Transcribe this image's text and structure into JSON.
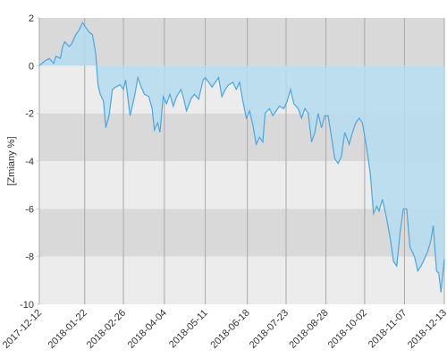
{
  "chart_data": {
    "type": "area",
    "y_label": "[Zmiany %]",
    "x": [
      "2017-12-12",
      "2017-12-17",
      "2017-12-21",
      "2017-12-25",
      "2017-12-27",
      "2017-12-31",
      "2018-01-02",
      "2018-01-04",
      "2018-01-08",
      "2018-01-10",
      "2018-01-14",
      "2018-01-17",
      "2018-01-20",
      "2018-01-23",
      "2018-01-26",
      "2018-01-29",
      "2018-02-01",
      "2018-02-03",
      "2018-02-05",
      "2018-02-08",
      "2018-02-10",
      "2018-02-13",
      "2018-02-16",
      "2018-02-19",
      "2018-02-23",
      "2018-02-26",
      "2018-02-28",
      "2018-03-04",
      "2018-03-08",
      "2018-03-11",
      "2018-03-14",
      "2018-03-17",
      "2018-03-21",
      "2018-03-24",
      "2018-03-26",
      "2018-03-29",
      "2018-03-31",
      "2018-04-03",
      "2018-04-06",
      "2018-04-09",
      "2018-04-12",
      "2018-04-15",
      "2018-04-19",
      "2018-04-21",
      "2018-04-24",
      "2018-04-28",
      "2018-05-01",
      "2018-05-05",
      "2018-05-09",
      "2018-05-11",
      "2018-05-14",
      "2018-05-17",
      "2018-05-20",
      "2018-05-23",
      "2018-05-26",
      "2018-05-29",
      "2018-06-01",
      "2018-06-05",
      "2018-06-08",
      "2018-06-11",
      "2018-06-14",
      "2018-06-17",
      "2018-06-20",
      "2018-06-23",
      "2018-06-26",
      "2018-06-29",
      "2018-07-02",
      "2018-07-04",
      "2018-07-08",
      "2018-07-11",
      "2018-07-14",
      "2018-07-17",
      "2018-07-21",
      "2018-07-24",
      "2018-07-27",
      "2018-07-30",
      "2018-08-03",
      "2018-08-06",
      "2018-08-09",
      "2018-08-12",
      "2018-08-15",
      "2018-08-18",
      "2018-08-21",
      "2018-08-24",
      "2018-08-27",
      "2018-08-30",
      "2018-09-02",
      "2018-09-05",
      "2018-09-08",
      "2018-09-11",
      "2018-09-14",
      "2018-09-18",
      "2018-09-21",
      "2018-09-24",
      "2018-09-27",
      "2018-09-30",
      "2018-10-04",
      "2018-10-07",
      "2018-10-10",
      "2018-10-13",
      "2018-10-15",
      "2018-10-18",
      "2018-10-21",
      "2018-10-25",
      "2018-10-28",
      "2018-10-31",
      "2018-11-03",
      "2018-11-06",
      "2018-11-09",
      "2018-11-12",
      "2018-11-16",
      "2018-11-19",
      "2018-11-22",
      "2018-11-24",
      "2018-11-28",
      "2018-12-01",
      "2018-12-03",
      "2018-12-06",
      "2018-12-08",
      "2018-12-10",
      "2018-12-13"
    ],
    "values": [
      0,
      0.2,
      0.3,
      0.1,
      0.4,
      0.3,
      0.8,
      1.0,
      0.8,
      0.9,
      1.3,
      1.5,
      1.8,
      1.6,
      1.4,
      1.3,
      0.5,
      -0.8,
      -1.2,
      -1.5,
      -2.6,
      -2.1,
      -1.0,
      -0.9,
      -0.8,
      -1.0,
      -0.6,
      -2.1,
      -1.3,
      -0.5,
      -0.9,
      -1.2,
      -1.3,
      -1.8,
      -2.7,
      -2.4,
      -2.8,
      -1.3,
      -1.6,
      -1.2,
      -1.7,
      -1.3,
      -1.0,
      -1.3,
      -1.9,
      -1.4,
      -1.2,
      -1.4,
      -0.6,
      -0.5,
      -0.7,
      -0.9,
      -0.7,
      -0.5,
      -1.3,
      -1.0,
      -0.8,
      -0.7,
      -1.0,
      -0.7,
      -1.5,
      -2.2,
      -1.9,
      -2.5,
      -3.3,
      -3.0,
      -3.2,
      -2.0,
      -1.8,
      -2.1,
      -1.9,
      -1.7,
      -1.8,
      -1.5,
      -1.0,
      -1.6,
      -1.8,
      -2.2,
      -1.8,
      -2.0,
      -3.2,
      -2.8,
      -2.0,
      -2.6,
      -2.1,
      -2.1,
      -3.0,
      -3.9,
      -4.1,
      -3.8,
      -2.8,
      -3.3,
      -2.8,
      -2.4,
      -2.2,
      -2.4,
      -3.5,
      -4.5,
      -6.2,
      -5.9,
      -6.1,
      -5.6,
      -6.2,
      -7.2,
      -8.2,
      -8.4,
      -7.0,
      -6.0,
      -6.0,
      -7.6,
      -8.0,
      -8.6,
      -8.4,
      -8.2,
      -7.8,
      -7.3,
      -6.7,
      -8.6,
      -8.7,
      -9.5,
      -8.1
    ],
    "color": "#4da6e0",
    "fill_color": "#b4dcef",
    "xlim": [
      "2017-12-12",
      "2018-12-13"
    ],
    "xticks": [
      "2017-12-12",
      "2018-01-22",
      "2018-02-26",
      "2018-04-04",
      "2018-05-11",
      "2018-06-18",
      "2018-07-23",
      "2018-08-28",
      "2018-10-02",
      "2018-11-07",
      "2018-12-13"
    ],
    "ylim": [
      -10,
      2
    ],
    "yticks": [
      -10,
      -8,
      -6,
      -4,
      -2,
      0,
      2
    ],
    "band_colors": [
      "#ececec",
      "#d9d9d9"
    ],
    "grid": true
  }
}
